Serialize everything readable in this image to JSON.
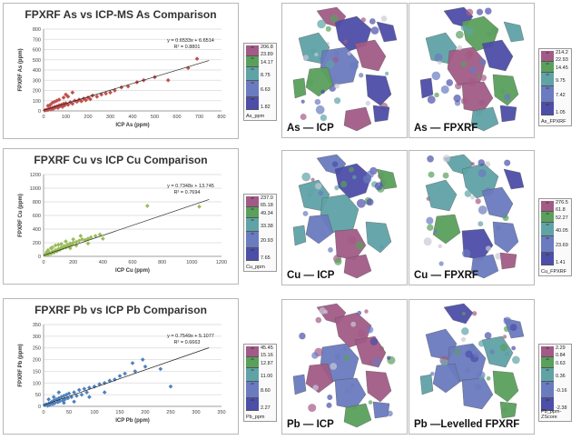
{
  "charts": [
    {
      "title": "FPXRF As vs ICP-MS As Comparison",
      "xlabel": "ICP As (ppm)",
      "ylabel": "FPXRF As (ppm)",
      "xticks": [
        "0",
        "100",
        "200",
        "300",
        "400",
        "500",
        "600",
        "700",
        "800"
      ],
      "yticks": [
        "0",
        "100",
        "200",
        "300",
        "400",
        "500",
        "600",
        "700",
        "800"
      ],
      "equation": "y = 0.6533x + 6.6514",
      "r2": "R² = 0.8801",
      "color": "#c0504d",
      "marker": "diamond"
    },
    {
      "title": "FPXRF Cu vs ICP Cu Comparison",
      "xlabel": "ICP Cu (ppm)",
      "ylabel": "FPXRF Cu (ppm)",
      "xticks": [
        "0",
        "200",
        "400",
        "600",
        "800",
        "1000",
        "1200"
      ],
      "yticks": [
        "0",
        "200",
        "400",
        "600",
        "800",
        "1000",
        "1200"
      ],
      "equation": "y = 0.7348x + 13.745",
      "r2": "R² = 0.7694",
      "color": "#9bbb59",
      "marker": "diamond"
    },
    {
      "title": "FPXRF Pb vs ICP Pb Comparison",
      "xlabel": "ICP Pb (ppm)",
      "ylabel": "FPXRF Pb (ppm)",
      "xticks": [
        "0",
        "50",
        "100",
        "150",
        "200",
        "250",
        "300",
        "350"
      ],
      "yticks": [
        "0",
        "50",
        "100",
        "150",
        "200",
        "250",
        "300",
        "350"
      ],
      "equation": "y = 0.7549x + 5.1077",
      "r2": "R² = 0.6663",
      "color": "#4f81bd",
      "marker": "diamond"
    }
  ],
  "chart_data": [
    {
      "type": "scatter",
      "title": "FPXRF As vs ICP-MS As Comparison",
      "xlabel": "ICP As (ppm)",
      "ylabel": "FPXRF As (ppm)",
      "xlim": [
        0,
        800
      ],
      "ylim": [
        0,
        800
      ],
      "trendline": {
        "slope": 0.6533,
        "intercept": 6.6514,
        "r2": 0.8801
      },
      "points": [
        [
          5,
          5
        ],
        [
          10,
          8
        ],
        [
          15,
          12
        ],
        [
          20,
          10
        ],
        [
          25,
          20
        ],
        [
          30,
          25
        ],
        [
          35,
          15
        ],
        [
          40,
          30
        ],
        [
          45,
          22
        ],
        [
          50,
          40
        ],
        [
          55,
          35
        ],
        [
          60,
          45
        ],
        [
          65,
          30
        ],
        [
          70,
          55
        ],
        [
          75,
          48
        ],
        [
          80,
          60
        ],
        [
          85,
          40
        ],
        [
          90,
          70
        ],
        [
          95,
          55
        ],
        [
          100,
          75
        ],
        [
          110,
          60
        ],
        [
          120,
          85
        ],
        [
          130,
          70
        ],
        [
          140,
          100
        ],
        [
          150,
          90
        ],
        [
          160,
          110
        ],
        [
          170,
          95
        ],
        [
          180,
          120
        ],
        [
          190,
          105
        ],
        [
          200,
          130
        ],
        [
          210,
          115
        ],
        [
          220,
          150
        ],
        [
          240,
          140
        ],
        [
          260,
          160
        ],
        [
          280,
          170
        ],
        [
          300,
          180
        ],
        [
          320,
          200
        ],
        [
          350,
          230
        ],
        [
          380,
          240
        ],
        [
          420,
          280
        ],
        [
          450,
          300
        ],
        [
          500,
          330
        ],
        [
          560,
          300
        ],
        [
          650,
          420
        ],
        [
          690,
          510
        ],
        [
          30,
          60
        ],
        [
          50,
          90
        ],
        [
          70,
          110
        ],
        [
          90,
          130
        ],
        [
          110,
          140
        ],
        [
          60,
          100
        ],
        [
          40,
          80
        ],
        [
          20,
          50
        ],
        [
          100,
          160
        ],
        [
          130,
          180
        ]
      ]
    },
    {
      "type": "scatter",
      "title": "FPXRF Cu vs ICP Cu Comparison",
      "xlabel": "ICP Cu (ppm)",
      "ylabel": "FPXRF Cu (ppm)",
      "xlim": [
        0,
        1200
      ],
      "ylim": [
        0,
        1200
      ],
      "trendline": {
        "slope": 0.7348,
        "intercept": 13.745,
        "r2": 0.7694
      },
      "points": [
        [
          10,
          20
        ],
        [
          20,
          30
        ],
        [
          30,
          25
        ],
        [
          40,
          50
        ],
        [
          50,
          40
        ],
        [
          60,
          70
        ],
        [
          70,
          55
        ],
        [
          80,
          90
        ],
        [
          90,
          75
        ],
        [
          100,
          110
        ],
        [
          110,
          95
        ],
        [
          120,
          130
        ],
        [
          130,
          120
        ],
        [
          140,
          150
        ],
        [
          150,
          130
        ],
        [
          160,
          170
        ],
        [
          170,
          150
        ],
        [
          180,
          190
        ],
        [
          190,
          170
        ],
        [
          200,
          200
        ],
        [
          220,
          210
        ],
        [
          240,
          230
        ],
        [
          260,
          250
        ],
        [
          280,
          240
        ],
        [
          300,
          260
        ],
        [
          320,
          280
        ],
        [
          350,
          300
        ],
        [
          380,
          320
        ],
        [
          400,
          260
        ],
        [
          250,
          300
        ],
        [
          200,
          250
        ],
        [
          150,
          220
        ],
        [
          100,
          170
        ],
        [
          50,
          120
        ],
        [
          30,
          90
        ],
        [
          20,
          60
        ],
        [
          60,
          130
        ],
        [
          80,
          160
        ],
        [
          120,
          180
        ],
        [
          700,
          740
        ],
        [
          1050,
          730
        ],
        [
          180,
          120
        ],
        [
          220,
          160
        ],
        [
          300,
          190
        ]
      ]
    },
    {
      "type": "scatter",
      "title": "FPXRF Pb vs ICP Pb Comparison",
      "xlabel": "ICP Pb (ppm)",
      "ylabel": "FPXRF Pb (ppm)",
      "xlim": [
        0,
        350
      ],
      "ylim": [
        0,
        350
      ],
      "trendline": {
        "slope": 0.7549,
        "intercept": 5.1077,
        "r2": 0.6663
      },
      "points": [
        [
          2,
          5
        ],
        [
          5,
          8
        ],
        [
          8,
          3
        ],
        [
          10,
          12
        ],
        [
          12,
          6
        ],
        [
          15,
          18
        ],
        [
          18,
          10
        ],
        [
          20,
          25
        ],
        [
          22,
          14
        ],
        [
          25,
          30
        ],
        [
          28,
          18
        ],
        [
          30,
          35
        ],
        [
          32,
          22
        ],
        [
          35,
          40
        ],
        [
          38,
          25
        ],
        [
          40,
          45
        ],
        [
          42,
          30
        ],
        [
          45,
          50
        ],
        [
          48,
          35
        ],
        [
          50,
          55
        ],
        [
          55,
          40
        ],
        [
          60,
          60
        ],
        [
          65,
          45
        ],
        [
          70,
          70
        ],
        [
          75,
          50
        ],
        [
          80,
          75
        ],
        [
          85,
          60
        ],
        [
          90,
          80
        ],
        [
          100,
          85
        ],
        [
          110,
          95
        ],
        [
          120,
          100
        ],
        [
          130,
          110
        ],
        [
          140,
          115
        ],
        [
          150,
          130
        ],
        [
          160,
          140
        ],
        [
          180,
          150
        ],
        [
          200,
          170
        ],
        [
          230,
          160
        ],
        [
          195,
          200
        ],
        [
          175,
          185
        ],
        [
          250,
          85
        ],
        [
          120,
          60
        ],
        [
          90,
          40
        ],
        [
          60,
          20
        ],
        [
          40,
          15
        ],
        [
          20,
          40
        ],
        [
          30,
          60
        ],
        [
          10,
          30
        ]
      ]
    }
  ],
  "legends": [
    {
      "name": "As_ppm",
      "labels": [
        "206.8",
        "23.89",
        "14.17",
        "8.75",
        "6.63",
        "1.82"
      ],
      "nums": [
        "20",
        "20",
        "20",
        "20",
        "20"
      ]
    },
    {
      "name": "As_FPXRF",
      "labels": [
        "214.2",
        "22.93",
        "14.45",
        "9.75",
        "7.42",
        "1.05"
      ],
      "nums": [
        "20",
        "20",
        "20",
        "20",
        "20"
      ]
    },
    {
      "name": "Cu_ppm",
      "labels": [
        "237.0",
        "65.18",
        "49.34",
        "33.38",
        "20.93",
        "7.65"
      ],
      "nums": [
        "20",
        "20",
        "20",
        "20",
        "20"
      ]
    },
    {
      "name": "Cu_FPXRF",
      "labels": [
        "276.5",
        "61.8",
        "52.27",
        "40.05",
        "23.69",
        "1.41"
      ],
      "nums": [
        "20",
        "20",
        "20",
        "20",
        "20"
      ]
    },
    {
      "name": "Pb_ppm",
      "labels": [
        "45.45",
        "15.16",
        "12.87",
        "11.00",
        "8.60",
        "2.27"
      ],
      "nums": [
        "20",
        "20",
        "20",
        "20",
        "20"
      ]
    },
    {
      "name": "Pb_ppm-ZScore",
      "labels": [
        "2.29",
        "0.84",
        "0.63",
        "0.36",
        "-0.16",
        "-2.38"
      ],
      "nums": [
        "20",
        "20",
        "20",
        "20",
        "20"
      ]
    }
  ],
  "legend_colors": [
    "#a25b86",
    "#5aa05c",
    "#5fa3a7",
    "#6a7bbf",
    "#4c4ea8"
  ],
  "maps": [
    {
      "label": "As — ICP"
    },
    {
      "label": "As — FPXRF"
    },
    {
      "label": "Cu — ICP"
    },
    {
      "label": "Cu — FPXRF"
    },
    {
      "label": "Pb — ICP"
    },
    {
      "label": "Pb —Levelled FPXRF"
    }
  ]
}
